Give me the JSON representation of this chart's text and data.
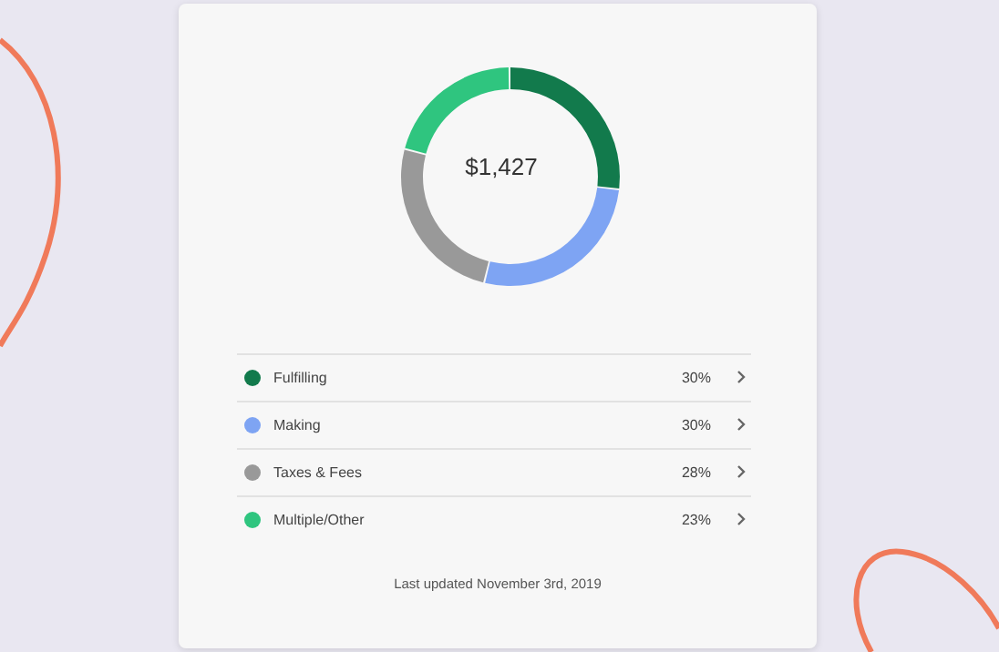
{
  "chart_data": {
    "type": "donut",
    "categories": [
      "Fulfilling",
      "Making",
      "Taxes & Fees",
      "Multiple/Other"
    ],
    "values": [
      30,
      30,
      28,
      23
    ],
    "colors": [
      "#127a4c",
      "#7ea4f3",
      "#999999",
      "#2fc57f"
    ],
    "value_labels": [
      "30%",
      "30%",
      "28%",
      "23%"
    ],
    "legend": "bottom",
    "annotations": [
      "$1,427",
      "Last updated November 3rd, 2019"
    ]
  }
}
